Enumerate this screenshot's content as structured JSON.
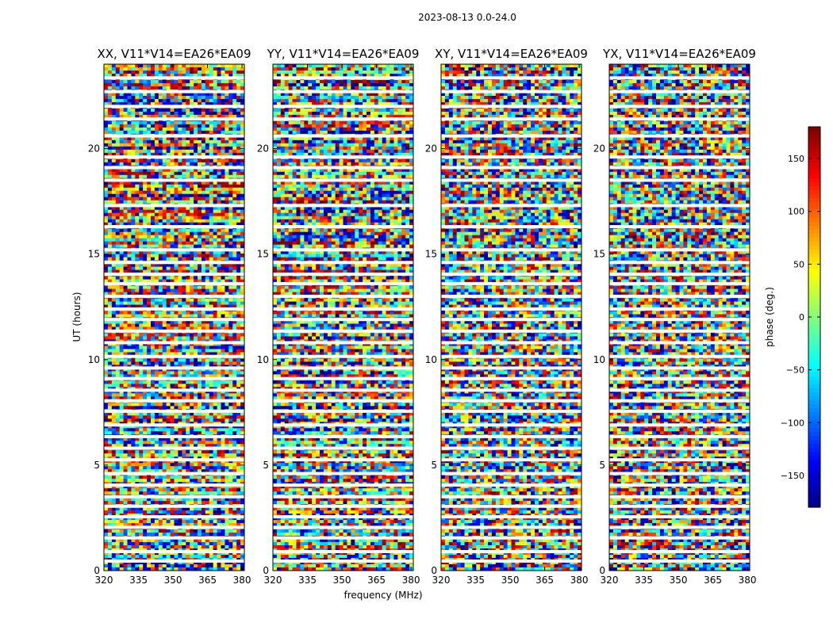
{
  "suptitle": "2023-08-13 0.0-24.0",
  "chart_data": {
    "type": "heatmap",
    "panels": [
      {
        "title": "XX, V11*V14=EA26*EA09",
        "pol": "XX"
      },
      {
        "title": "YY, V11*V14=EA26*EA09",
        "pol": "YY"
      },
      {
        "title": "XY, V11*V14=EA26*EA09",
        "pol": "XY"
      },
      {
        "title": "YX, V11*V14=EA26*EA09",
        "pol": "YX"
      }
    ],
    "xlabel": "frequency (MHz)",
    "ylabel": "UT (hours)",
    "xlim": [
      320,
      381
    ],
    "ylim": [
      0,
      24
    ],
    "xticks": [
      320,
      335,
      350,
      365,
      380
    ],
    "yticks": [
      0,
      5,
      10,
      15,
      20
    ],
    "colorbar": {
      "label": "phase (deg.)",
      "range": [
        -180,
        180
      ],
      "ticks": [
        150,
        100,
        50,
        0,
        -50,
        -100,
        -150
      ],
      "tick_labels": [
        "150",
        "100",
        "50",
        "0",
        "−50",
        "−100",
        "−150"
      ],
      "colormap": "jet"
    },
    "flagged_gaps_hours": [
      0.45,
      0.9,
      1.55,
      2.05,
      2.55,
      3.05,
      3.5,
      4.05,
      4.6,
      5.25,
      5.8,
      6.35,
      6.9,
      7.55,
      8.05,
      8.55,
      9.1,
      9.6,
      10.15,
      10.8,
      11.35,
      11.9,
      12.4,
      13.0,
      13.6,
      14.05,
      14.6,
      15.2,
      16.3,
      17.3,
      18.5,
      19.1,
      19.6,
      20.6,
      21.4,
      22.0,
      22.7,
      23.35
    ]
  }
}
